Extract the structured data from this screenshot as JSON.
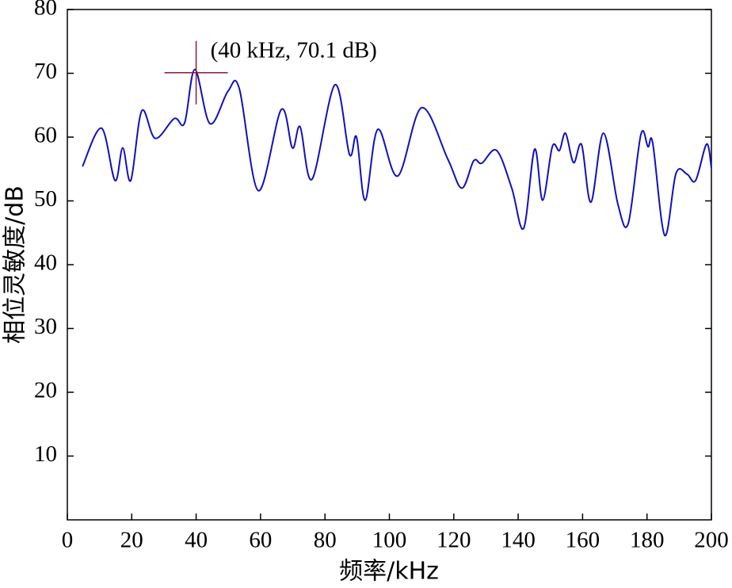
{
  "chart_data": {
    "type": "line",
    "x_label": "频率/kHz",
    "y_label": "相位灵敏度/dB",
    "x": [
      4.7,
      10.6,
      14.8,
      17.2,
      19.7,
      23.1,
      27.3,
      33.2,
      36.4,
      39.6,
      44.3,
      49.9,
      53.4,
      59.3,
      66.4,
      69.9,
      72.3,
      76.0,
      83.1,
      87.6,
      89.8,
      92.5,
      96.4,
      102.6,
      110.0,
      118.1,
      122.5,
      126.2,
      128.7,
      133.3,
      138.0,
      141.7,
      145.1,
      147.6,
      150.6,
      152.8,
      154.7,
      157.2,
      159.7,
      162.6,
      166.5,
      171.0,
      174.2,
      178.1,
      180.3,
      181.8,
      185.5,
      189.0,
      192.4,
      195.1,
      198.5,
      200
    ],
    "series": [
      {
        "color": "#1010c0",
        "values": [
          55.4,
          61.4,
          53.2,
          58.3,
          53.2,
          64.1,
          59.8,
          62.9,
          62.2,
          70.6,
          62.1,
          67.2,
          67.6,
          51.6,
          64.3,
          58.3,
          61.6,
          53.4,
          68.2,
          57.3,
          60.0,
          50.1,
          61.2,
          53.9,
          64.6,
          56.6,
          52.0,
          56.3,
          55.9,
          57.9,
          52.0,
          45.7,
          58.1,
          50.1,
          58.5,
          57.9,
          60.6,
          56.0,
          58.8,
          49.8,
          60.6,
          49.4,
          46.5,
          60.4,
          58.5,
          59.0,
          44.6,
          54.3,
          54.2,
          53.2,
          58.9,
          55.2
        ]
      }
    ],
    "annotation": {
      "text": "(40 kHz, 70.1 dB)",
      "x": 40,
      "y": 70.1,
      "color": "#8b1a3a"
    },
    "xlim": [
      0,
      200
    ],
    "xticks": [
      0,
      20,
      40,
      60,
      80,
      100,
      120,
      140,
      160,
      180,
      200
    ],
    "ylim": [
      0,
      80
    ],
    "yticks": [
      10,
      20,
      30,
      40,
      50,
      60,
      70,
      80
    ]
  }
}
